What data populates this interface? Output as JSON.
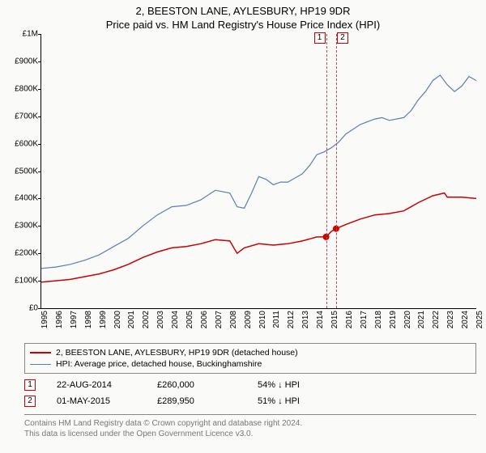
{
  "title_line1": "2, BEESTON LANE, AYLESBURY, HP19 9DR",
  "title_line2": "Price paid vs. HM Land Registry's House Price Index (HPI)",
  "chart": {
    "type": "line",
    "background_color": "#fafaf8",
    "x_years": [
      1995,
      1996,
      1997,
      1998,
      1999,
      2000,
      2001,
      2002,
      2003,
      2004,
      2005,
      2006,
      2007,
      2008,
      2009,
      2010,
      2011,
      2012,
      2013,
      2014,
      2015,
      2016,
      2017,
      2018,
      2019,
      2020,
      2021,
      2022,
      2023,
      2024,
      2025
    ],
    "xlim": [
      1995,
      2025
    ],
    "ylim": [
      0,
      1000000
    ],
    "ytick_step": 100000,
    "ytick_labels": [
      "£0",
      "£100K",
      "£200K",
      "£300K",
      "£400K",
      "£500K",
      "£600K",
      "£700K",
      "£800K",
      "£900K",
      "£1M"
    ],
    "series": [
      {
        "name": "price_paid",
        "color": "#cc0000",
        "width": 1.5,
        "points": [
          [
            1995,
            95000
          ],
          [
            1996,
            100000
          ],
          [
            1997,
            105000
          ],
          [
            1998,
            115000
          ],
          [
            1999,
            125000
          ],
          [
            2000,
            140000
          ],
          [
            2001,
            160000
          ],
          [
            2002,
            185000
          ],
          [
            2003,
            205000
          ],
          [
            2004,
            220000
          ],
          [
            2005,
            225000
          ],
          [
            2006,
            235000
          ],
          [
            2007,
            250000
          ],
          [
            2008,
            245000
          ],
          [
            2008.5,
            200000
          ],
          [
            2009,
            220000
          ],
          [
            2010,
            235000
          ],
          [
            2011,
            230000
          ],
          [
            2012,
            235000
          ],
          [
            2013,
            245000
          ],
          [
            2014,
            260000
          ],
          [
            2014.64,
            260000
          ],
          [
            2015,
            280000
          ],
          [
            2015.33,
            289950
          ],
          [
            2016,
            305000
          ],
          [
            2017,
            325000
          ],
          [
            2018,
            340000
          ],
          [
            2019,
            345000
          ],
          [
            2020,
            355000
          ],
          [
            2021,
            385000
          ],
          [
            2022,
            410000
          ],
          [
            2022.8,
            420000
          ],
          [
            2023,
            405000
          ],
          [
            2024,
            405000
          ],
          [
            2025,
            400000
          ]
        ]
      },
      {
        "name": "hpi",
        "color": "#5b7fb3",
        "width": 1.2,
        "points": [
          [
            1995,
            145000
          ],
          [
            1996,
            150000
          ],
          [
            1997,
            160000
          ],
          [
            1998,
            175000
          ],
          [
            1999,
            195000
          ],
          [
            2000,
            225000
          ],
          [
            2001,
            255000
          ],
          [
            2002,
            300000
          ],
          [
            2003,
            340000
          ],
          [
            2004,
            370000
          ],
          [
            2005,
            375000
          ],
          [
            2006,
            395000
          ],
          [
            2007,
            430000
          ],
          [
            2008,
            420000
          ],
          [
            2008.5,
            370000
          ],
          [
            2009,
            365000
          ],
          [
            2009.5,
            420000
          ],
          [
            2010,
            480000
          ],
          [
            2010.5,
            470000
          ],
          [
            2011,
            450000
          ],
          [
            2011.5,
            460000
          ],
          [
            2012,
            460000
          ],
          [
            2012.5,
            475000
          ],
          [
            2013,
            490000
          ],
          [
            2013.5,
            520000
          ],
          [
            2014,
            560000
          ],
          [
            2014.5,
            570000
          ],
          [
            2015,
            585000
          ],
          [
            2015.5,
            605000
          ],
          [
            2016,
            635000
          ],
          [
            2017,
            670000
          ],
          [
            2018,
            690000
          ],
          [
            2018.5,
            695000
          ],
          [
            2019,
            685000
          ],
          [
            2020,
            695000
          ],
          [
            2020.5,
            720000
          ],
          [
            2021,
            760000
          ],
          [
            2021.5,
            790000
          ],
          [
            2022,
            830000
          ],
          [
            2022.5,
            850000
          ],
          [
            2023,
            815000
          ],
          [
            2023.5,
            790000
          ],
          [
            2024,
            810000
          ],
          [
            2024.5,
            845000
          ],
          [
            2025,
            830000
          ]
        ]
      }
    ],
    "event_markers": [
      {
        "n": "1",
        "x": 2014.64,
        "y": 260000
      },
      {
        "n": "2",
        "x": 2015.33,
        "y": 289950
      }
    ]
  },
  "legend": [
    {
      "color": "#cc0000",
      "width": 2,
      "label": "2, BEESTON LANE, AYLESBURY, HP19 9DR (detached house)"
    },
    {
      "color": "#5b7fb3",
      "width": 1.2,
      "label": "HPI: Average price, detached house, Buckinghamshire"
    }
  ],
  "events": [
    {
      "n": "1",
      "date": "22-AUG-2014",
      "price": "£260,000",
      "delta": "54% ↓ HPI"
    },
    {
      "n": "2",
      "date": "01-MAY-2015",
      "price": "£289,950",
      "delta": "51% ↓ HPI"
    }
  ],
  "footer_line1": "Contains HM Land Registry data © Crown copyright and database right 2024.",
  "footer_line2": "This data is licensed under the Open Government Licence v3.0."
}
